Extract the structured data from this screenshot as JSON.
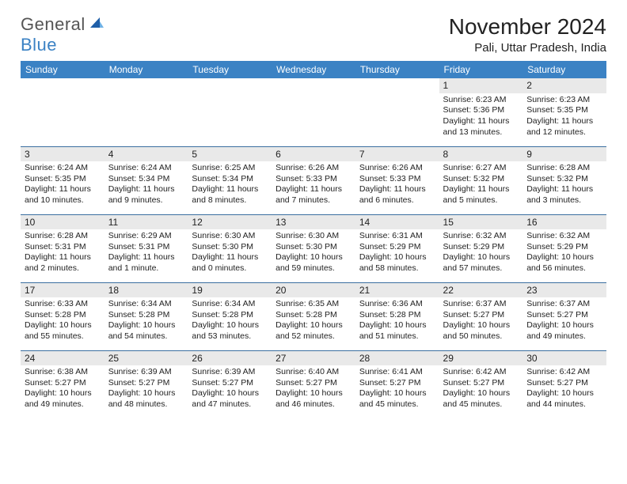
{
  "logo": {
    "part1": "General",
    "part2": "Blue"
  },
  "title": "November 2024",
  "location": "Pali, Uttar Pradesh, India",
  "day_headers": [
    "Sunday",
    "Monday",
    "Tuesday",
    "Wednesday",
    "Thursday",
    "Friday",
    "Saturday"
  ],
  "colors": {
    "header_bg": "#3b82c4",
    "header_fg": "#ffffff",
    "row_sep": "#3b6fa0",
    "daynum_bg": "#e9e9e9",
    "text": "#222222"
  },
  "weeks": [
    [
      {
        "day": "",
        "sunrise": "",
        "sunset": "",
        "daylight": ""
      },
      {
        "day": "",
        "sunrise": "",
        "sunset": "",
        "daylight": ""
      },
      {
        "day": "",
        "sunrise": "",
        "sunset": "",
        "daylight": ""
      },
      {
        "day": "",
        "sunrise": "",
        "sunset": "",
        "daylight": ""
      },
      {
        "day": "",
        "sunrise": "",
        "sunset": "",
        "daylight": ""
      },
      {
        "day": "1",
        "sunrise": "Sunrise: 6:23 AM",
        "sunset": "Sunset: 5:36 PM",
        "daylight": "Daylight: 11 hours and 13 minutes."
      },
      {
        "day": "2",
        "sunrise": "Sunrise: 6:23 AM",
        "sunset": "Sunset: 5:35 PM",
        "daylight": "Daylight: 11 hours and 12 minutes."
      }
    ],
    [
      {
        "day": "3",
        "sunrise": "Sunrise: 6:24 AM",
        "sunset": "Sunset: 5:35 PM",
        "daylight": "Daylight: 11 hours and 10 minutes."
      },
      {
        "day": "4",
        "sunrise": "Sunrise: 6:24 AM",
        "sunset": "Sunset: 5:34 PM",
        "daylight": "Daylight: 11 hours and 9 minutes."
      },
      {
        "day": "5",
        "sunrise": "Sunrise: 6:25 AM",
        "sunset": "Sunset: 5:34 PM",
        "daylight": "Daylight: 11 hours and 8 minutes."
      },
      {
        "day": "6",
        "sunrise": "Sunrise: 6:26 AM",
        "sunset": "Sunset: 5:33 PM",
        "daylight": "Daylight: 11 hours and 7 minutes."
      },
      {
        "day": "7",
        "sunrise": "Sunrise: 6:26 AM",
        "sunset": "Sunset: 5:33 PM",
        "daylight": "Daylight: 11 hours and 6 minutes."
      },
      {
        "day": "8",
        "sunrise": "Sunrise: 6:27 AM",
        "sunset": "Sunset: 5:32 PM",
        "daylight": "Daylight: 11 hours and 5 minutes."
      },
      {
        "day": "9",
        "sunrise": "Sunrise: 6:28 AM",
        "sunset": "Sunset: 5:32 PM",
        "daylight": "Daylight: 11 hours and 3 minutes."
      }
    ],
    [
      {
        "day": "10",
        "sunrise": "Sunrise: 6:28 AM",
        "sunset": "Sunset: 5:31 PM",
        "daylight": "Daylight: 11 hours and 2 minutes."
      },
      {
        "day": "11",
        "sunrise": "Sunrise: 6:29 AM",
        "sunset": "Sunset: 5:31 PM",
        "daylight": "Daylight: 11 hours and 1 minute."
      },
      {
        "day": "12",
        "sunrise": "Sunrise: 6:30 AM",
        "sunset": "Sunset: 5:30 PM",
        "daylight": "Daylight: 11 hours and 0 minutes."
      },
      {
        "day": "13",
        "sunrise": "Sunrise: 6:30 AM",
        "sunset": "Sunset: 5:30 PM",
        "daylight": "Daylight: 10 hours and 59 minutes."
      },
      {
        "day": "14",
        "sunrise": "Sunrise: 6:31 AM",
        "sunset": "Sunset: 5:29 PM",
        "daylight": "Daylight: 10 hours and 58 minutes."
      },
      {
        "day": "15",
        "sunrise": "Sunrise: 6:32 AM",
        "sunset": "Sunset: 5:29 PM",
        "daylight": "Daylight: 10 hours and 57 minutes."
      },
      {
        "day": "16",
        "sunrise": "Sunrise: 6:32 AM",
        "sunset": "Sunset: 5:29 PM",
        "daylight": "Daylight: 10 hours and 56 minutes."
      }
    ],
    [
      {
        "day": "17",
        "sunrise": "Sunrise: 6:33 AM",
        "sunset": "Sunset: 5:28 PM",
        "daylight": "Daylight: 10 hours and 55 minutes."
      },
      {
        "day": "18",
        "sunrise": "Sunrise: 6:34 AM",
        "sunset": "Sunset: 5:28 PM",
        "daylight": "Daylight: 10 hours and 54 minutes."
      },
      {
        "day": "19",
        "sunrise": "Sunrise: 6:34 AM",
        "sunset": "Sunset: 5:28 PM",
        "daylight": "Daylight: 10 hours and 53 minutes."
      },
      {
        "day": "20",
        "sunrise": "Sunrise: 6:35 AM",
        "sunset": "Sunset: 5:28 PM",
        "daylight": "Daylight: 10 hours and 52 minutes."
      },
      {
        "day": "21",
        "sunrise": "Sunrise: 6:36 AM",
        "sunset": "Sunset: 5:28 PM",
        "daylight": "Daylight: 10 hours and 51 minutes."
      },
      {
        "day": "22",
        "sunrise": "Sunrise: 6:37 AM",
        "sunset": "Sunset: 5:27 PM",
        "daylight": "Daylight: 10 hours and 50 minutes."
      },
      {
        "day": "23",
        "sunrise": "Sunrise: 6:37 AM",
        "sunset": "Sunset: 5:27 PM",
        "daylight": "Daylight: 10 hours and 49 minutes."
      }
    ],
    [
      {
        "day": "24",
        "sunrise": "Sunrise: 6:38 AM",
        "sunset": "Sunset: 5:27 PM",
        "daylight": "Daylight: 10 hours and 49 minutes."
      },
      {
        "day": "25",
        "sunrise": "Sunrise: 6:39 AM",
        "sunset": "Sunset: 5:27 PM",
        "daylight": "Daylight: 10 hours and 48 minutes."
      },
      {
        "day": "26",
        "sunrise": "Sunrise: 6:39 AM",
        "sunset": "Sunset: 5:27 PM",
        "daylight": "Daylight: 10 hours and 47 minutes."
      },
      {
        "day": "27",
        "sunrise": "Sunrise: 6:40 AM",
        "sunset": "Sunset: 5:27 PM",
        "daylight": "Daylight: 10 hours and 46 minutes."
      },
      {
        "day": "28",
        "sunrise": "Sunrise: 6:41 AM",
        "sunset": "Sunset: 5:27 PM",
        "daylight": "Daylight: 10 hours and 45 minutes."
      },
      {
        "day": "29",
        "sunrise": "Sunrise: 6:42 AM",
        "sunset": "Sunset: 5:27 PM",
        "daylight": "Daylight: 10 hours and 45 minutes."
      },
      {
        "day": "30",
        "sunrise": "Sunrise: 6:42 AM",
        "sunset": "Sunset: 5:27 PM",
        "daylight": "Daylight: 10 hours and 44 minutes."
      }
    ]
  ]
}
